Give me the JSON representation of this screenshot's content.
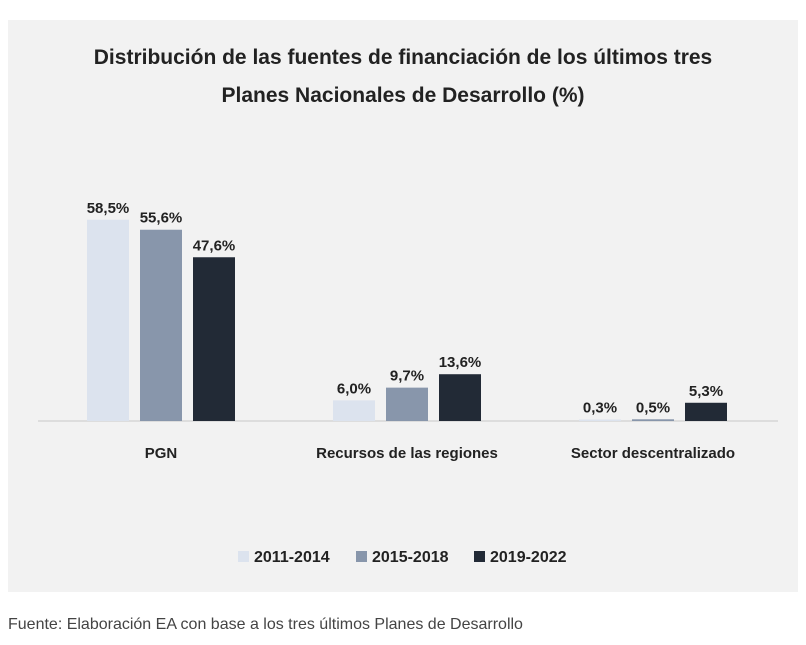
{
  "chart_data": {
    "type": "bar",
    "title_lines": [
      "Distribución de  las fuentes de financiación de los últimos tres",
      "Planes Nacionales de Desarrollo (%)"
    ],
    "categories": [
      "PGN",
      "Recursos de las regiones",
      "Sector descentralizado"
    ],
    "series": [
      {
        "name": "2011-2014",
        "color": "#dce3ee",
        "values": [
          58.5,
          6.0,
          0.3
        ],
        "labels": [
          "58,5%",
          "6,0%",
          "0,3%"
        ]
      },
      {
        "name": "2015-2018",
        "color": "#8896ab",
        "values": [
          55.6,
          9.7,
          0.5
        ],
        "labels": [
          "55,6%",
          "9,7%",
          "0,5%"
        ]
      },
      {
        "name": "2019-2022",
        "color": "#222a36",
        "values": [
          47.6,
          13.6,
          5.3
        ],
        "labels": [
          "47,6%",
          "13,6%",
          "5,3%"
        ]
      }
    ],
    "ylim": [
      0,
      60
    ],
    "grid": false,
    "legend_position": "bottom"
  },
  "source_note": "Fuente: Elaboración EA con base a los tres últimos Planes de Desarrollo"
}
